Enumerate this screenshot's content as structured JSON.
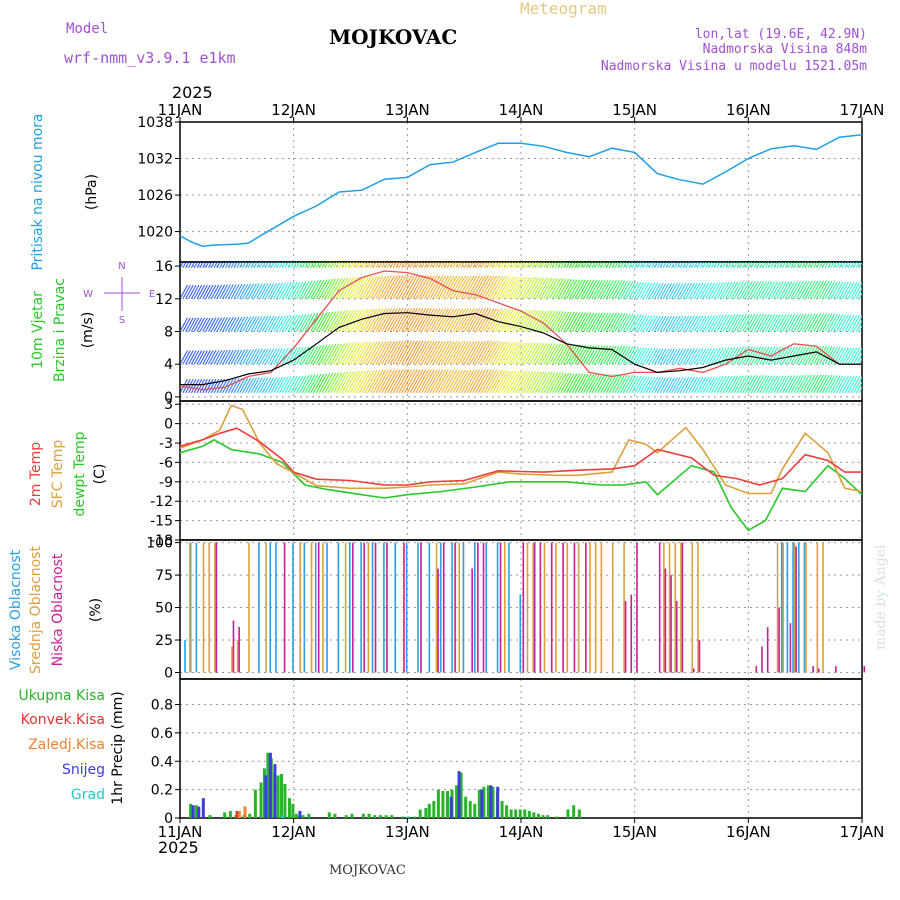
{
  "header": {
    "model_label": "Model",
    "model_name": "wrf-nmm_v3.9.1 e1km",
    "station": "MOJKOVAC",
    "chart_kind": "Meteogram",
    "lonlat": "lon,lat (19.6E, 42.9N)",
    "elevation": "Nadmorska Visina 848m",
    "model_elevation": "Nadmorska Visina u modelu 1521.05m",
    "year": "2025",
    "footer_station": "MOJKOVAC",
    "credit": "made by Angel"
  },
  "colors": {
    "pressure": "#1ea0e6",
    "temp2m": "#f03c3c",
    "sfc_temp": "#dca03c",
    "dewpoint": "#28c828",
    "wind_speed": "#000000",
    "gust": "#e65050",
    "cloud_high": "#28a0e6",
    "cloud_mid": "#dca03c",
    "cloud_low": "#c81e96",
    "precip_total": "#28b428",
    "precip_conv": "#e63232",
    "precip_frz": "#f08232",
    "precip_snow": "#3c3cdc",
    "precip_graupel": "#28c8c8",
    "header_purple": "#a050d2",
    "header_gold": "#e6c882"
  },
  "chart_data": [
    {
      "type": "line",
      "id": "pressure",
      "ylabel": "Pritisak na nivou mora",
      "unit": "(hPa)",
      "ylim": [
        1015,
        1038
      ],
      "yticks": [
        1020,
        1026,
        1032,
        1038
      ],
      "xlim": [
        0,
        6
      ],
      "xticks": [
        "11JAN",
        "12JAN",
        "13JAN",
        "14JAN",
        "15JAN",
        "16JAN",
        "17JAN"
      ],
      "grid": true,
      "series": [
        {
          "x": [
            0,
            0.1,
            0.2,
            0.3,
            0.5,
            0.6,
            0.8,
            1.0,
            1.2,
            1.4,
            1.6,
            1.8,
            2.0,
            2.2,
            2.4,
            2.6,
            2.8,
            3.0,
            3.2,
            3.4,
            3.6,
            3.8,
            4.0,
            4.2,
            4.4,
            4.6,
            4.8,
            5.0,
            5.2,
            5.4,
            5.6,
            5.8,
            6.0
          ],
          "y": [
            1019.3,
            1018.3,
            1017.6,
            1017.8,
            1017.9,
            1018.1,
            1020.3,
            1022.5,
            1024.2,
            1026.5,
            1026.8,
            1028.6,
            1028.9,
            1031.0,
            1031.4,
            1033.0,
            1034.5,
            1034.5,
            1034.0,
            1033.0,
            1032.3,
            1033.7,
            1033.0,
            1029.5,
            1028.5,
            1027.8,
            1029.8,
            1032.0,
            1033.6,
            1034.1,
            1033.5,
            1035.5,
            1035.9
          ]
        }
      ]
    },
    {
      "type": "line",
      "id": "wind",
      "ylabel": "10m Vjetar",
      "ylabel2": "Brzina i Pravac",
      "unit": "(m/s)",
      "ylim": [
        -0.5,
        16.5
      ],
      "yticks": [
        0,
        4,
        8,
        12,
        16
      ],
      "compass": [
        "N",
        "S",
        "E",
        "W"
      ],
      "series": [
        {
          "name": "speed",
          "x": [
            0,
            0.2,
            0.4,
            0.6,
            0.8,
            1.0,
            1.2,
            1.4,
            1.6,
            1.8,
            2.0,
            2.2,
            2.4,
            2.6,
            2.8,
            3.0,
            3.2,
            3.4,
            3.6,
            3.8,
            4.0,
            4.2,
            4.4,
            4.6,
            4.8,
            5.0,
            5.2,
            5.4,
            5.6,
            5.8,
            6.0
          ],
          "y": [
            1.5,
            1.5,
            2.0,
            2.8,
            3.2,
            4.5,
            6.5,
            8.5,
            9.5,
            10.2,
            10.3,
            10.0,
            9.8,
            10.2,
            9.2,
            8.6,
            7.8,
            6.5,
            6.0,
            5.8,
            4.0,
            3.0,
            3.2,
            3.6,
            4.5,
            5.0,
            4.5,
            5.0,
            5.5,
            4.0,
            4.0
          ]
        },
        {
          "name": "gust",
          "x": [
            0,
            0.2,
            0.4,
            0.6,
            0.8,
            1.0,
            1.2,
            1.4,
            1.6,
            1.8,
            2.0,
            2.2,
            2.4,
            2.6,
            2.8,
            3.0,
            3.2,
            3.4,
            3.6,
            3.8,
            4.0,
            4.2,
            4.4,
            4.6,
            4.8,
            5.0,
            5.2,
            5.4,
            5.6,
            5.8,
            6.0
          ],
          "y": [
            1.3,
            0.9,
            1.2,
            2.5,
            3.0,
            6.0,
            9.5,
            13.0,
            14.6,
            15.4,
            15.2,
            14.5,
            13.0,
            12.5,
            11.5,
            10.5,
            9.0,
            6.5,
            3.0,
            2.5,
            3.0,
            3.0,
            3.5,
            3.0,
            4.0,
            5.8,
            5.0,
            6.5,
            6.2,
            4.0,
            4.0
          ]
        }
      ]
    },
    {
      "type": "line",
      "id": "temperature",
      "ylabels": [
        "2m Temp",
        "SFC Temp",
        "dewpt Temp"
      ],
      "unit": "(C)",
      "ylim": [
        -18,
        3.5
      ],
      "yticks": [
        3,
        0,
        -3,
        -6,
        -9,
        -12,
        -15,
        -18
      ],
      "series": [
        {
          "name": "2m Temp",
          "x": [
            0,
            0.2,
            0.35,
            0.5,
            0.7,
            0.9,
            1.0,
            1.2,
            1.5,
            1.8,
            2.0,
            2.2,
            2.5,
            2.8,
            3.0,
            3.2,
            3.5,
            3.8,
            4.0,
            4.2,
            4.5,
            4.7,
            4.9,
            5.1,
            5.3,
            5.5,
            5.7,
            5.85,
            6.0
          ],
          "y": [
            -3.5,
            -2.5,
            -1.5,
            -0.7,
            -2.8,
            -5.5,
            -7.5,
            -8.6,
            -8.8,
            -9.5,
            -9.5,
            -9.0,
            -8.8,
            -7.3,
            -7.4,
            -7.5,
            -7.2,
            -7.0,
            -6.5,
            -4.0,
            -5.3,
            -8.0,
            -8.5,
            -9.5,
            -8.5,
            -4.8,
            -5.7,
            -7.5,
            -7.5
          ]
        },
        {
          "name": "SFC Temp",
          "x": [
            0,
            0.2,
            0.35,
            0.45,
            0.55,
            0.7,
            0.85,
            1.0,
            1.2,
            1.5,
            1.8,
            2.0,
            2.2,
            2.5,
            2.8,
            3.0,
            3.3,
            3.5,
            3.8,
            3.95,
            4.1,
            4.2,
            4.45,
            4.6,
            4.8,
            5.0,
            5.2,
            5.3,
            5.5,
            5.7,
            5.85,
            6.0
          ],
          "y": [
            -3.8,
            -2.5,
            -1.0,
            2.8,
            2.2,
            -3.0,
            -6.2,
            -7.6,
            -9.6,
            -10.0,
            -10.0,
            -9.8,
            -9.5,
            -9.3,
            -7.5,
            -7.8,
            -8.0,
            -8.0,
            -7.5,
            -2.5,
            -3.2,
            -4.5,
            -0.6,
            -4.0,
            -9.5,
            -10.8,
            -10.8,
            -7.0,
            -1.5,
            -4.5,
            -10.0,
            -10.5
          ]
        },
        {
          "name": "dewpt Temp",
          "x": [
            0,
            0.2,
            0.3,
            0.45,
            0.7,
            0.9,
            1.1,
            1.3,
            1.6,
            1.8,
            2.0,
            2.3,
            2.6,
            2.9,
            3.1,
            3.4,
            3.7,
            3.9,
            4.1,
            4.2,
            4.4,
            4.5,
            4.7,
            4.85,
            5.0,
            5.15,
            5.3,
            5.5,
            5.7,
            5.85,
            6.0
          ],
          "y": [
            -4.5,
            -3.5,
            -2.5,
            -4.0,
            -4.7,
            -6.0,
            -9.5,
            -10.2,
            -11.0,
            -11.5,
            -11.0,
            -10.5,
            -9.8,
            -9.0,
            -9.0,
            -9.0,
            -9.5,
            -9.5,
            -9.0,
            -11.0,
            -8.0,
            -6.5,
            -7.5,
            -13.0,
            -16.5,
            -15.0,
            -10.0,
            -10.5,
            -6.5,
            -8.5,
            -11.0
          ]
        }
      ]
    },
    {
      "type": "bar",
      "id": "clouds",
      "ylabels": [
        "Visoka Oblacnost",
        "Srednja Oblacnost",
        "Niska Oblacnost"
      ],
      "unit": "(%)",
      "ylim": [
        -5,
        102
      ],
      "yticks": [
        0,
        25,
        50,
        75,
        100
      ],
      "series": [
        {
          "name": "Visoka Oblacnost",
          "x": [
            0.05,
            0.1,
            0.15,
            0.7,
            0.8,
            0.85,
            1.0,
            1.1,
            1.2,
            1.3,
            1.4,
            1.5,
            1.6,
            1.7,
            1.8,
            1.9,
            2.0,
            2.1,
            2.2,
            2.3,
            2.4,
            2.5,
            2.6,
            2.7,
            2.8,
            2.9,
            3.0,
            5.3,
            5.35,
            5.4,
            5.45,
            5.5
          ],
          "values": [
            25,
            100,
            100,
            100,
            100,
            100,
            100,
            100,
            100,
            100,
            100,
            100,
            100,
            100,
            100,
            100,
            100,
            100,
            100,
            100,
            100,
            100,
            100,
            100,
            100,
            100,
            60,
            100,
            100,
            100,
            100,
            100
          ]
        },
        {
          "name": "Srednja Oblacnost",
          "x": [
            0.08,
            0.2,
            0.25,
            0.3,
            0.45,
            0.5,
            0.6,
            0.75,
            1.05,
            1.15,
            1.25,
            1.45,
            1.65,
            2.25,
            2.45,
            2.85,
            3.05,
            3.1,
            3.2,
            3.3,
            3.4,
            3.5,
            3.6,
            3.65,
            3.7,
            3.8,
            3.9,
            4.25,
            4.3,
            4.35,
            4.4,
            4.5,
            4.55,
            5.25,
            5.3,
            5.4,
            5.5,
            5.6,
            5.65
          ],
          "values": [
            100,
            100,
            100,
            100,
            20,
            25,
            100,
            100,
            100,
            100,
            100,
            100,
            100,
            100,
            100,
            100,
            100,
            100,
            100,
            100,
            100,
            100,
            100,
            100,
            100,
            100,
            100,
            100,
            100,
            100,
            100,
            100,
            100,
            100,
            100,
            100,
            100,
            100,
            100
          ]
        },
        {
          "name": "Niska Oblacnost",
          "x": [
            0.3,
            0.45,
            0.5,
            0.9,
            1.2,
            1.5,
            1.6,
            1.7,
            1.8,
            1.95,
            2.1,
            2.25,
            2.3,
            2.4,
            2.55,
            2.6,
            2.65,
            2.8,
            3.0,
            3.1,
            3.15,
            3.25,
            3.35,
            3.45,
            3.55,
            3.9,
            3.95,
            4.0,
            4.2,
            4.25,
            4.3,
            4.35,
            4.4,
            4.5,
            4.55,
            5.05,
            5.1,
            5.15,
            5.25,
            5.35,
            5.4,
            5.55,
            5.6,
            5.75,
            6.0
          ],
          "values": [
            100,
            40,
            35,
            100,
            100,
            100,
            100,
            100,
            100,
            100,
            100,
            80,
            100,
            100,
            80,
            100,
            100,
            100,
            100,
            100,
            100,
            100,
            100,
            100,
            100,
            55,
            60,
            100,
            100,
            80,
            75,
            55,
            100,
            3,
            25,
            5,
            20,
            35,
            50,
            38,
            97,
            5,
            3,
            5,
            5
          ]
        }
      ]
    },
    {
      "type": "bar",
      "id": "precip",
      "ylabels": [
        "Ukupna Kisa",
        "Konvek.Kisa",
        "Zaledj.Kisa",
        "Snijeg",
        "Grad"
      ],
      "unit": "1hr Precip (mm)",
      "ylim": [
        0,
        0.98
      ],
      "yticks": [
        0,
        0.2,
        0.4,
        0.6,
        0.8
      ],
      "series": [
        {
          "name": "Ukupna Kisa",
          "x": [
            0.08,
            0.13,
            0.25,
            0.38,
            0.43,
            0.48,
            0.55,
            0.6,
            0.65,
            0.7,
            0.73,
            0.76,
            0.79,
            0.82,
            0.85,
            0.88,
            0.91,
            0.95,
            0.98,
            1.01,
            1.04,
            1.07,
            1.12,
            1.3,
            1.35,
            1.45,
            1.5,
            1.6,
            1.65,
            1.7,
            1.75,
            1.8,
            1.85,
            1.95,
            2.0,
            2.05,
            2.1,
            2.15,
            2.18,
            2.22,
            2.26,
            2.3,
            2.34,
            2.38,
            2.42,
            2.46,
            2.5,
            2.54,
            2.58,
            2.62,
            2.66,
            2.7,
            2.74,
            2.78,
            2.82,
            2.86,
            2.9,
            2.94,
            2.98,
            3.02,
            3.06,
            3.1,
            3.14,
            3.18,
            3.22,
            3.3,
            3.4,
            3.45,
            3.5
          ],
          "values": [
            0.1,
            0.09,
            0.02,
            0.04,
            0.05,
            0.02,
            0.02,
            0.03,
            0.2,
            0.25,
            0.35,
            0.46,
            0.42,
            0.32,
            0.3,
            0.31,
            0.24,
            0.14,
            0.1,
            0.03,
            0.02,
            0.02,
            0.03,
            0.04,
            0.03,
            0.02,
            0.03,
            0.03,
            0.03,
            0.02,
            0.02,
            0.02,
            0.02,
            0.01,
            0.01,
            0.01,
            0.06,
            0.07,
            0.1,
            0.12,
            0.2,
            0.19,
            0.19,
            0.2,
            0.23,
            0.32,
            0.15,
            0.12,
            0.1,
            0.2,
            0.22,
            0.23,
            0.22,
            0.18,
            0.12,
            0.09,
            0.06,
            0.06,
            0.06,
            0.06,
            0.05,
            0.04,
            0.03,
            0.02,
            0.02,
            0.01,
            0.06,
            0.09,
            0.06
          ]
        },
        {
          "name": "Konvek.Kisa",
          "x": [
            0.48,
            0.55
          ],
          "values": [
            0.05,
            0.08
          ]
        },
        {
          "name": "Zaledj.Kisa",
          "x": [
            0.5,
            0.55
          ],
          "values": [
            0.05,
            0.08
          ]
        },
        {
          "name": "Snijeg",
          "x": [
            0.08,
            0.13,
            0.17,
            0.72,
            0.76,
            0.8,
            1.02,
            2.35,
            2.42,
            2.62,
            2.7,
            2.76
          ],
          "values": [
            0.09,
            0.08,
            0.14,
            0.3,
            0.46,
            0.38,
            0.05,
            0.15,
            0.33,
            0.2,
            0.23,
            0.22
          ]
        },
        {
          "name": "Grad",
          "x": [
            0.9,
            2.0
          ],
          "values": [
            0.02,
            0.01
          ]
        }
      ]
    }
  ]
}
